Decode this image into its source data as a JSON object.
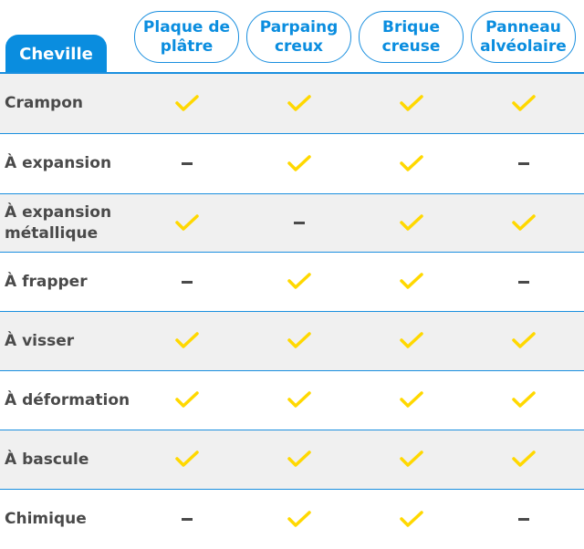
{
  "header": {
    "first_column": "Cheville",
    "columns": [
      "Plaque de plâtre",
      "Parpaing creux",
      "Brique creuse",
      "Panneau alvéolaire"
    ]
  },
  "colors": {
    "accent": "#0a8ddf",
    "check": "#ffd800",
    "dash": "#4a4a4a",
    "row_alt": "#f0f0f0"
  },
  "rows": [
    {
      "label": "Crampon",
      "values": [
        "yes",
        "yes",
        "yes",
        "yes"
      ]
    },
    {
      "label": "À expansion",
      "values": [
        "no",
        "yes",
        "yes",
        "no"
      ]
    },
    {
      "label": "À expansion métallique",
      "values": [
        "yes",
        "no",
        "yes",
        "yes"
      ]
    },
    {
      "label": "À frapper",
      "values": [
        "no",
        "yes",
        "yes",
        "no"
      ]
    },
    {
      "label": "À visser",
      "values": [
        "yes",
        "yes",
        "yes",
        "yes"
      ]
    },
    {
      "label": "À déformation",
      "values": [
        "yes",
        "yes",
        "yes",
        "yes"
      ]
    },
    {
      "label": "À bascule",
      "values": [
        "yes",
        "yes",
        "yes",
        "yes"
      ]
    },
    {
      "label": "Chimique",
      "values": [
        "no",
        "yes",
        "yes",
        "no"
      ]
    }
  ]
}
